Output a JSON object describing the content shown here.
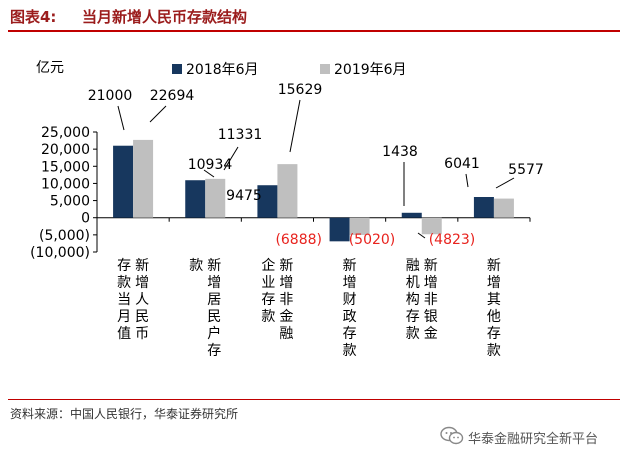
{
  "figure": {
    "number": "图表4:",
    "title": "当月新增人民币存款结构"
  },
  "source": "资料来源：中国人民银行，华泰证券研究所",
  "watermark": "华泰金融研究全新平台",
  "chart_data": {
    "type": "bar",
    "unit_label": "亿元",
    "categories": [
      [
        "新增人民币",
        "存款当月值"
      ],
      [
        "新增居民户存",
        "款"
      ],
      [
        "新增非金融",
        "企业存款"
      ],
      [
        "新增财政存款"
      ],
      [
        "新增非银金",
        "融机构存款"
      ],
      [
        "新增其他存款"
      ]
    ],
    "series": [
      {
        "name": "2018年6月",
        "color": "#17375e",
        "values": [
          21000,
          10934,
          9475,
          -6888,
          1438,
          6041
        ]
      },
      {
        "name": "2019年6月",
        "color": "#bfbfbf",
        "values": [
          22694,
          11331,
          15629,
          -5020,
          -4823,
          5577
        ]
      }
    ],
    "data_labels": [
      [
        "21000",
        "10934",
        "9475",
        "(6888)",
        "1438",
        "6041"
      ],
      [
        "22694",
        "11331",
        "15629",
        "(5020)",
        "(4823)",
        "5577"
      ]
    ],
    "negative_label_color": "#e8231e",
    "ylim": [
      -10000,
      25000
    ],
    "yticks": [
      25000,
      20000,
      15000,
      10000,
      5000,
      0,
      -5000,
      -10000
    ],
    "ytick_labels": [
      "25,000",
      "20,000",
      "15,000",
      "10,000",
      "5,000",
      "0",
      "(5,000)",
      "(10,000)"
    ],
    "legend_position": "top",
    "grid": false
  }
}
